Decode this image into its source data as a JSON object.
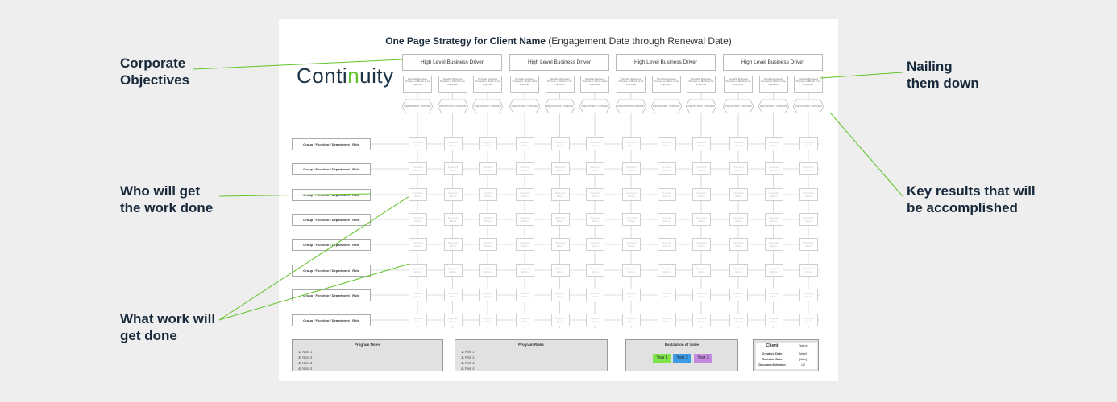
{
  "callouts": {
    "corporate": [
      "Corporate",
      "Objectives"
    ],
    "nailing": [
      "Nailing",
      "them down"
    ],
    "who": [
      "Who will get",
      "the work done"
    ],
    "key": [
      "Key results that will",
      "be accomplished"
    ],
    "what": [
      "What work will",
      "get done"
    ]
  },
  "sheet": {
    "title_bold": "One Page Strategy for Client Name",
    "title_rest": " (Engagement Date through Renewal Date)",
    "logo": {
      "pre": "Conti",
      "mid": "n",
      "post": "uity"
    },
    "drivers": [
      "High Level Business Driver",
      "High Level Business Driver",
      "High Level Business Driver",
      "High Level Business Driver"
    ],
    "target_text": "Tangible Business Process or Metric to be improved",
    "threshold_text": "Improvement Threshold",
    "group_label": "Group / Function / Department / Role",
    "cell_text": "Required Efforts",
    "program_notes": {
      "title": "Program Notes",
      "items": [
        "Note 1",
        "Note 2",
        "Note 3",
        "Note 4"
      ]
    },
    "program_risks": {
      "title": "Program Risks",
      "items": [
        "Risk 1",
        "Risk 2",
        "Risk 3",
        "Risk 4"
      ]
    },
    "realization": {
      "title": "Realization of Value",
      "years": [
        {
          "label": "Year 1",
          "color": "#7fe34a"
        },
        {
          "label": "Year 2",
          "color": "#3d9be6"
        },
        {
          "label": "Year 3",
          "color": "#c48ae0"
        }
      ]
    },
    "client": {
      "header": "Client",
      "header_value": "Name",
      "rows": [
        {
          "k": "Creation Date",
          "v": "[date]"
        },
        {
          "k": "Revision Date",
          "v": "[date]"
        },
        {
          "k": "Document Version",
          "v": "1.0"
        }
      ]
    }
  },
  "colors": {
    "accent_green": "#62c42a",
    "callout_text": "#16283a"
  }
}
